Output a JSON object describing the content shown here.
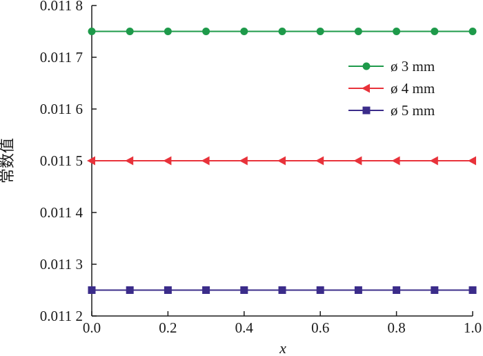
{
  "chart_data": {
    "type": "line",
    "title": "",
    "xlabel": "x",
    "ylabel": "常数值",
    "xlim": [
      0.0,
      1.0
    ],
    "ylim": [
      0.0112,
      0.0118
    ],
    "x_ticks": [
      0.0,
      0.2,
      0.4,
      0.6,
      0.8,
      1.0
    ],
    "x_tick_labels": [
      "0.0",
      "0.2",
      "0.4",
      "0.6",
      "0.8",
      "1.0"
    ],
    "y_ticks": [
      0.0112,
      0.0113,
      0.0114,
      0.0115,
      0.0116,
      0.0117,
      0.0118
    ],
    "y_tick_labels": [
      "0.011 2",
      "0.011 3",
      "0.011 4",
      "0.011 5",
      "0.011 6",
      "0.011 7",
      "0.011 8"
    ],
    "grid": false,
    "legend_position": "top-right",
    "x": [
      0.0,
      0.1,
      0.2,
      0.3,
      0.4,
      0.5,
      0.6,
      0.7,
      0.8,
      0.9,
      1.0
    ],
    "series": [
      {
        "name": "ø 3 mm",
        "color": "#1e9a4a",
        "marker": "circle",
        "values": [
          0.01175,
          0.01175,
          0.01175,
          0.01175,
          0.01175,
          0.01175,
          0.01175,
          0.01175,
          0.01175,
          0.01175,
          0.01175
        ]
      },
      {
        "name": "ø 4 mm",
        "color": "#e8323a",
        "marker": "triangle-left",
        "values": [
          0.0115,
          0.0115,
          0.0115,
          0.0115,
          0.0115,
          0.0115,
          0.0115,
          0.0115,
          0.0115,
          0.0115,
          0.0115
        ]
      },
      {
        "name": "ø 5 mm",
        "color": "#3b2c8a",
        "marker": "square",
        "values": [
          0.01125,
          0.01125,
          0.01125,
          0.01125,
          0.01125,
          0.01125,
          0.01125,
          0.01125,
          0.01125,
          0.01125,
          0.01125
        ]
      }
    ]
  }
}
